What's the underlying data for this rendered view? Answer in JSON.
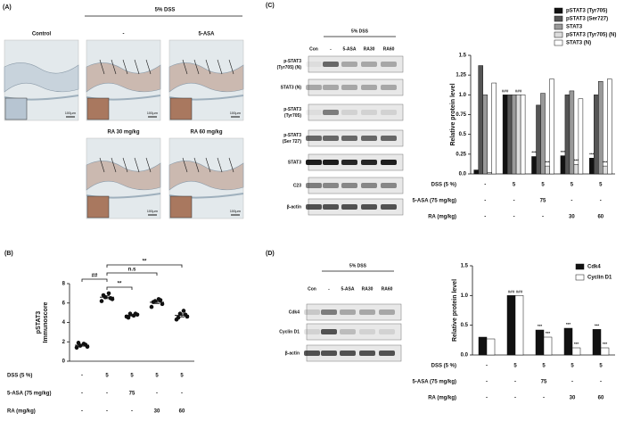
{
  "figure": {
    "panel_labels": [
      "(A)",
      "(B)",
      "(C)",
      "(D)"
    ],
    "histology": {
      "group_label": "5% DSS",
      "scale_bar": "100µm",
      "images": [
        "Control",
        "-",
        "5-ASA",
        "RA 30 mg/kg",
        "RA 60 mg/kg"
      ]
    },
    "blot_c": {
      "group_label": "5% DSS",
      "lanes": [
        "Con",
        "-",
        "5-ASA",
        "RA30",
        "RA60"
      ],
      "rows": [
        [
          "p-STAT3",
          "(Tyr705) (N)"
        ],
        [
          "STAT3 (N)"
        ],
        [
          "p-STAT3",
          "(Tyr705)"
        ],
        [
          "p-STAT3",
          "(Ser 727)"
        ],
        [
          "STAT3"
        ],
        [
          "C23"
        ],
        [
          "β-actin"
        ]
      ]
    },
    "blot_d": {
      "group_label": "5% DSS",
      "lanes": [
        "Con",
        "-",
        "5-ASA",
        "RA30",
        "RA60"
      ],
      "rows": [
        [
          "Cdk4"
        ],
        [
          "Cyclin D1"
        ],
        [
          "β-actin"
        ]
      ]
    }
  },
  "chart_data": [
    {
      "type": "dot",
      "y_label": [
        "pSTAT3",
        "Immunoscore"
      ],
      "values": [
        [
          1.4,
          1.6,
          1.8,
          1.5,
          1.9,
          1.7
        ],
        [
          6.2,
          6.6,
          7.0,
          6.4,
          6.8,
          6.5
        ],
        [
          4.6,
          4.9,
          4.7,
          4.8,
          4.5,
          4.9
        ],
        [
          5.6,
          6.2,
          6.4,
          5.9,
          6.1,
          6.3
        ],
        [
          4.3,
          4.9,
          5.2,
          4.6,
          4.5,
          4.8
        ]
      ],
      "means": [
        1.65,
        6.6,
        4.73,
        6.08,
        4.72
      ],
      "sem": [
        0.1,
        0.15,
        0.07,
        0.14,
        0.16
      ],
      "ylim": [
        0,
        8
      ],
      "yticks": [
        0,
        2,
        4,
        6,
        8
      ],
      "comparisons": [
        "**",
        "n.s",
        "##",
        "**"
      ],
      "treatments": [
        {
          "label": "DSS (5 %)",
          "values": [
            "-",
            "5",
            "5",
            "5",
            "5"
          ]
        },
        {
          "label": "5-ASA (75 mg/kg)",
          "values": [
            "-",
            "-",
            "75",
            "-",
            "-"
          ]
        },
        {
          "label": "RA (mg/kg)",
          "values": [
            "-",
            "-",
            "-",
            "30",
            "60"
          ]
        }
      ]
    },
    {
      "type": "bar",
      "y_label": "Relative protein level",
      "legend": "top-right",
      "series": [
        {
          "name": "pSTAT3 (Tyr705)",
          "color": "#111111",
          "values": [
            0.05,
            1.0,
            0.22,
            0.23,
            0.2
          ],
          "significance": [
            null,
            "###",
            "***",
            "***",
            "***"
          ]
        },
        {
          "name": "pSTAT3 (Ser727)",
          "color": "#555555",
          "values": [
            1.37,
            1.0,
            0.87,
            1.0,
            1.0
          ],
          "significance": [
            null,
            null,
            null,
            null,
            null
          ]
        },
        {
          "name": "STAT3",
          "color": "#999999",
          "values": [
            1.0,
            1.0,
            1.02,
            1.05,
            1.17
          ],
          "significance": [
            null,
            null,
            null,
            null,
            null
          ]
        },
        {
          "name": "pSTAT3 (Tyr705) (N)",
          "color": "#dddddd",
          "values": [
            0.02,
            1.0,
            0.1,
            0.12,
            0.1
          ],
          "significance": [
            null,
            "###",
            "***",
            "***",
            "***"
          ]
        },
        {
          "name": "STAT3 (N)",
          "color": "#ffffff",
          "values": [
            1.15,
            1.0,
            1.2,
            0.95,
            1.2
          ],
          "significance": [
            null,
            null,
            null,
            null,
            null
          ]
        }
      ],
      "ylim": [
        0,
        1.5
      ],
      "yticks": [
        {
          "value": 0,
          "label": "0.0"
        },
        0.25,
        0.5,
        0.75,
        {
          "value": 1,
          "label": "1.0"
        },
        1.25,
        1.5
      ],
      "treatments": [
        {
          "label": "DSS (5 %)",
          "values": [
            "-",
            "5",
            "5",
            "5",
            "5"
          ]
        },
        {
          "label": "5-ASA (75 mg/kg)",
          "values": [
            "-",
            "-",
            "75",
            "-",
            "-"
          ]
        },
        {
          "label": "RA (mg/kg)",
          "values": [
            "-",
            "-",
            "-",
            "30",
            "60"
          ]
        }
      ]
    },
    {
      "type": "bar",
      "y_label": "Relative protein level",
      "legend": "top-right",
      "series": [
        {
          "name": "Cdk4",
          "color": "#111111",
          "values": [
            0.3,
            1.0,
            0.42,
            0.45,
            0.43
          ],
          "significance": [
            null,
            "###",
            "***",
            "***",
            "***"
          ]
        },
        {
          "name": "Cyclin D1",
          "color": "#ffffff",
          "values": [
            0.27,
            1.0,
            0.3,
            0.12,
            0.12
          ],
          "significance": [
            null,
            "###",
            "***",
            "***",
            "***"
          ]
        }
      ],
      "ylim": [
        0,
        1.5
      ],
      "yticks": [
        {
          "value": 0,
          "label": "0.0"
        },
        0.5,
        {
          "value": 1,
          "label": "1.0"
        },
        1.5
      ],
      "treatments": [
        {
          "label": "DSS (5 %)",
          "values": [
            "-",
            "5",
            "5",
            "5",
            "5"
          ]
        },
        {
          "label": "5-ASA (75 mg/kg)",
          "values": [
            "-",
            "-",
            "75",
            "-",
            "-"
          ]
        },
        {
          "label": "RA (mg/kg)",
          "values": [
            "-",
            "-",
            "-",
            "30",
            "60"
          ]
        }
      ]
    }
  ]
}
